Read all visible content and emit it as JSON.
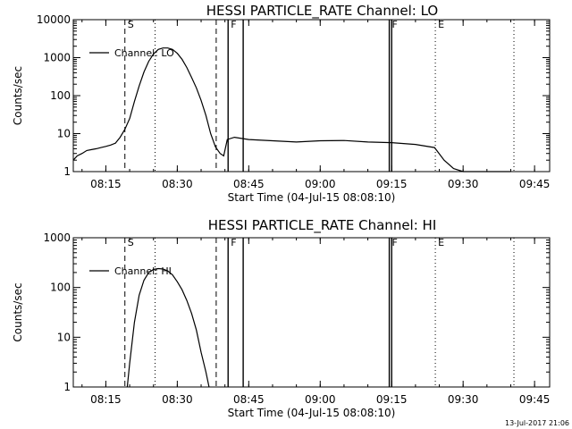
{
  "footer": "13-Jul-2017 21:06",
  "chart_data": [
    {
      "type": "line",
      "title": "HESSI PARTICLE_RATE Channel: LO",
      "xlabel": "Start Time (04-Jul-15 08:08:10)",
      "ylabel": "Counts/sec",
      "yscale": "log",
      "ylim": [
        1,
        10000
      ],
      "xlim": [
        "08:08:10",
        "09:48:10"
      ],
      "x_ticks": [
        "08:15",
        "08:30",
        "08:45",
        "09:00",
        "09:15",
        "09:30",
        "09:45"
      ],
      "y_ticks": [
        "1",
        "10",
        "100",
        "1000",
        "10000"
      ],
      "grid": false,
      "legend": "top-left",
      "legend_entries": [
        "Channel: LO"
      ],
      "series": [
        {
          "name": "Channel: LO",
          "x": [
            "08:08:10",
            "08:09:00",
            "08:10:00",
            "08:11:00",
            "08:12:00",
            "08:13:00",
            "08:14:00",
            "08:15:00",
            "08:16:00",
            "08:17:00",
            "08:18:00",
            "08:19:00",
            "08:20:00",
            "08:21:00",
            "08:22:00",
            "08:23:00",
            "08:24:00",
            "08:25:00",
            "08:26:00",
            "08:27:00",
            "08:28:00",
            "08:29:00",
            "08:30:00",
            "08:31:00",
            "08:32:00",
            "08:33:00",
            "08:34:00",
            "08:35:00",
            "08:36:00",
            "08:37:00",
            "08:38:00",
            "08:39:00",
            "08:39:45",
            "08:40:30",
            "08:42:00",
            "08:45:00",
            "08:50:00",
            "08:55:00",
            "09:00:00",
            "09:05:00",
            "09:10:00",
            "09:15:00",
            "09:20:00",
            "09:24:00",
            "09:26:00",
            "09:28:00",
            "09:30:00",
            "09:32:00",
            "09:34:00",
            "09:36:00",
            "09:38:00",
            "09:40:00"
          ],
          "values": [
            2,
            2.6,
            3,
            3.6,
            3.8,
            4,
            4.3,
            4.6,
            5,
            5.6,
            8,
            13,
            25,
            70,
            180,
            420,
            800,
            1250,
            1650,
            1800,
            1800,
            1650,
            1300,
            900,
            550,
            300,
            160,
            75,
            30,
            10,
            4.5,
            3,
            2.6,
            7,
            8,
            7,
            6.5,
            6,
            6.5,
            6.6,
            6,
            5.8,
            5.2,
            4.3,
            2,
            1.2,
            1,
            1,
            1,
            1,
            1,
            1
          ]
        }
      ],
      "markers": [
        {
          "label": "S",
          "x": "08:19:00",
          "style": "dashed"
        },
        {
          "label": "",
          "x": "08:25:20",
          "style": "dotted"
        },
        {
          "label": "",
          "x": "08:38:10",
          "style": "dashed"
        },
        {
          "label": "F",
          "x": "08:40:40",
          "style": "solid"
        },
        {
          "label": "",
          "x": "08:43:50",
          "style": "solid"
        },
        {
          "label": "F",
          "x": "09:14:30",
          "style": "solid"
        },
        {
          "label": "",
          "x": "09:15:00",
          "style": "solid"
        },
        {
          "label": "E",
          "x": "09:24:10",
          "style": "dotted"
        },
        {
          "label": "",
          "x": "09:40:40",
          "style": "dotted"
        }
      ]
    },
    {
      "type": "line",
      "title": "HESSI PARTICLE_RATE Channel: HI",
      "xlabel": "Start Time (04-Jul-15 08:08:10)",
      "ylabel": "Counts/sec",
      "yscale": "log",
      "ylim": [
        1,
        1000
      ],
      "xlim": [
        "08:08:10",
        "09:48:10"
      ],
      "x_ticks": [
        "08:15",
        "08:30",
        "08:45",
        "09:00",
        "09:15",
        "09:30",
        "09:45"
      ],
      "y_ticks": [
        "1",
        "10",
        "100",
        "1000"
      ],
      "grid": false,
      "legend": "top-left",
      "legend_entries": [
        "Channel: HI"
      ],
      "series": [
        {
          "name": "Channel: HI",
          "x": [
            "08:19:30",
            "08:20:00",
            "08:21:00",
            "08:22:00",
            "08:23:00",
            "08:24:00",
            "08:25:00",
            "08:26:00",
            "08:27:00",
            "08:28:00",
            "08:29:00",
            "08:30:00",
            "08:31:00",
            "08:32:00",
            "08:33:00",
            "08:34:00",
            "08:35:00",
            "08:36:00",
            "08:36:40"
          ],
          "values": [
            1,
            3,
            20,
            70,
            140,
            200,
            230,
            240,
            235,
            215,
            180,
            130,
            90,
            55,
            30,
            14,
            5,
            2,
            1
          ]
        }
      ],
      "markers": [
        {
          "label": "S",
          "x": "08:19:00",
          "style": "dashed"
        },
        {
          "label": "",
          "x": "08:25:20",
          "style": "dotted"
        },
        {
          "label": "",
          "x": "08:38:10",
          "style": "dashed"
        },
        {
          "label": "F",
          "x": "08:40:40",
          "style": "solid"
        },
        {
          "label": "",
          "x": "08:43:50",
          "style": "solid"
        },
        {
          "label": "F",
          "x": "09:14:30",
          "style": "solid"
        },
        {
          "label": "",
          "x": "09:15:00",
          "style": "solid"
        },
        {
          "label": "E",
          "x": "09:24:10",
          "style": "dotted"
        },
        {
          "label": "",
          "x": "09:40:40",
          "style": "dotted"
        }
      ]
    }
  ]
}
